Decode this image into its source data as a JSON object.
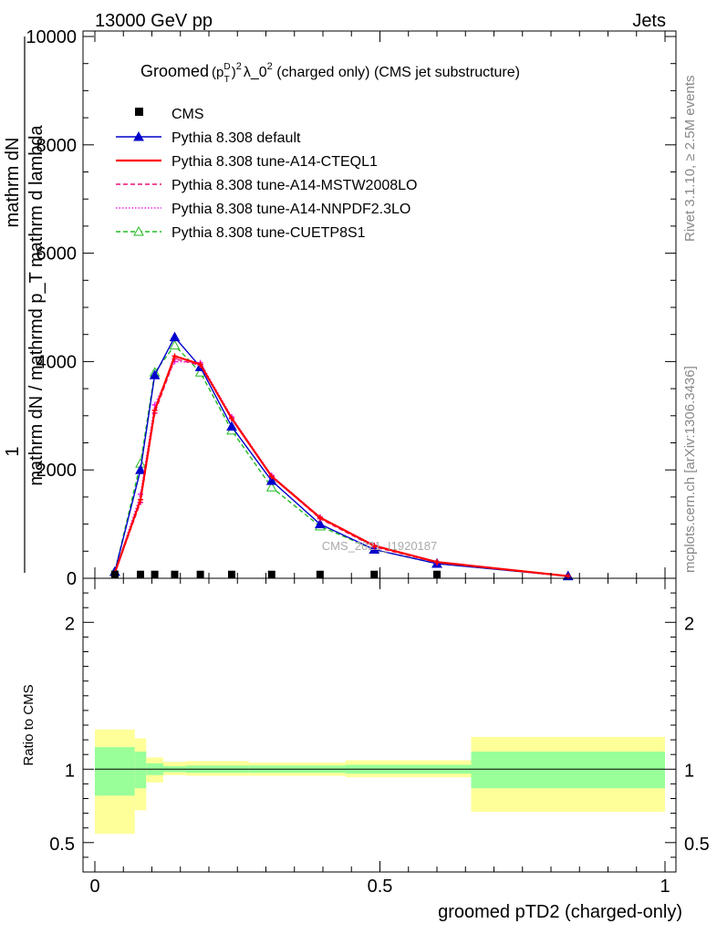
{
  "header": {
    "energy_label": "13000 GeV pp",
    "process_label": "Jets"
  },
  "side_labels": {
    "rivet": "Rivet 3.1.10, ≥ 2.5M events",
    "mcplots": "mcplots.cern.ch [arXiv:1306.3436]"
  },
  "watermark": "CMS_2021_I1920187",
  "colors": {
    "cms": "#000000",
    "default": "#0000cc",
    "cteql1": "#ff0000",
    "mstw": "#ee1177",
    "nnpdf": "#ee22ee",
    "cuetp8s1": "#22bb22",
    "band_inner": "#99ff99",
    "band_outer": "#ffff99"
  },
  "chart_data": [
    {
      "type": "line",
      "title": "Groomed (p_T^D)^2 λ_0^2  (charged only) (CMS jet substructure)",
      "title_parts": {
        "pre": "Groomed",
        "p": "(p",
        "sup_d": "D",
        "sub_t": "T",
        "close": ")",
        "sup_2": "2",
        "lambda": "λ_0",
        "sup_2b": "2",
        "post": "  (charged only) (CMS jet substructure)"
      },
      "ylabel_parts": {
        "one": "1",
        "num": "mathrm dN",
        "den": "mathrm dN / mathrmd p_T mathrm d lambda",
        "numer2": "mathrm d",
        "numer2b": "N",
        "den2": "mathrm d p",
        "den2sub": "T",
        "den2b": " mathrm d lambda"
      },
      "xlim": [
        0,
        1
      ],
      "ylim": [
        0,
        10000
      ],
      "yticks": [
        {
          "v": 0,
          "label": "0"
        },
        {
          "v": 2000,
          "label": "2000"
        },
        {
          "v": 4000,
          "label": "4000"
        },
        {
          "v": 6000,
          "label": "6000"
        },
        {
          "v": 8000,
          "label": "8000"
        },
        {
          "v": 10000,
          "label": "10000"
        }
      ],
      "cms_points": [
        {
          "x": 0.035,
          "y": 5
        },
        {
          "x": 0.08,
          "y": 5
        },
        {
          "x": 0.105,
          "y": 5
        },
        {
          "x": 0.14,
          "y": 5
        },
        {
          "x": 0.185,
          "y": 5
        },
        {
          "x": 0.24,
          "y": 5
        },
        {
          "x": 0.31,
          "y": 5
        },
        {
          "x": 0.395,
          "y": 5
        },
        {
          "x": 0.49,
          "y": 5
        },
        {
          "x": 0.6,
          "y": 5
        }
      ],
      "series": [
        {
          "key": "default",
          "name": "Pythia 8.308 default",
          "dash": "",
          "marker": "triangle-filled",
          "x": [
            0.035,
            0.08,
            0.105,
            0.14,
            0.185,
            0.24,
            0.31,
            0.395,
            0.49,
            0.6,
            0.83
          ],
          "y": [
            120,
            2000,
            3750,
            4450,
            3900,
            2800,
            1800,
            1000,
            530,
            270,
            40
          ]
        },
        {
          "key": "cteql1",
          "name": "Pythia 8.308 tune-A14-CTEQL1",
          "dash": "",
          "marker": "plus",
          "x": [
            0.035,
            0.08,
            0.105,
            0.14,
            0.185,
            0.24,
            0.31,
            0.395,
            0.49,
            0.6,
            0.83
          ],
          "y": [
            100,
            1450,
            3100,
            4100,
            3950,
            2950,
            1880,
            1120,
            600,
            300,
            40
          ]
        },
        {
          "key": "mstw",
          "name": "Pythia 8.308 tune-A14-MSTW2008LO",
          "dash": "5,3",
          "marker": "plus",
          "x": [
            0.035,
            0.08,
            0.105,
            0.14,
            0.185,
            0.24,
            0.31,
            0.395,
            0.49,
            0.6,
            0.83
          ],
          "y": [
            100,
            1400,
            3050,
            4050,
            3930,
            2950,
            1880,
            1100,
            580,
            290,
            40
          ]
        },
        {
          "key": "nnpdf",
          "name": "Pythia 8.308 tune-A14-NNPDF2.3LO",
          "dash": "1.5,2",
          "marker": "plus",
          "x": [
            0.035,
            0.08,
            0.105,
            0.14,
            0.185,
            0.24,
            0.31,
            0.395,
            0.49,
            0.6,
            0.83
          ],
          "y": [
            100,
            1550,
            3200,
            4000,
            3980,
            2980,
            1900,
            1130,
            610,
            300,
            40
          ]
        },
        {
          "key": "cuetp8s1",
          "name": "Pythia 8.308 tune-CUETP8S1",
          "dash": "5,3",
          "marker": "triangle-open",
          "x": [
            0.035,
            0.08,
            0.105,
            0.14,
            0.185,
            0.24,
            0.31,
            0.395,
            0.49,
            0.6,
            0.83
          ],
          "y": [
            120,
            2120,
            3800,
            4300,
            3800,
            2730,
            1680,
            960,
            530,
            270,
            40
          ]
        }
      ],
      "legend": {
        "placement": "top-left",
        "cms_label": "CMS"
      }
    },
    {
      "type": "area",
      "ylabel": "Ratio to CMS",
      "xlabel": "groomed pTD2 (charged-only)",
      "xlim": [
        0,
        1
      ],
      "ylim": [
        0.3,
        2.3
      ],
      "xticks": [
        {
          "v": 0,
          "label": "0"
        },
        {
          "v": 0.5,
          "label": "0.5"
        },
        {
          "v": 1,
          "label": "1"
        }
      ],
      "yticks": [
        {
          "v": 0.5,
          "label": "0.5"
        },
        {
          "v": 1,
          "label": "1"
        },
        {
          "v": 2,
          "label": "2"
        }
      ],
      "reference_line": 1,
      "bands": [
        {
          "x0": 0.0,
          "x1": 0.07,
          "inner": [
            0.82,
            1.15
          ],
          "outer": [
            0.56,
            1.27
          ]
        },
        {
          "x0": 0.07,
          "x1": 0.09,
          "inner": [
            0.87,
            1.12
          ],
          "outer": [
            0.72,
            1.21
          ]
        },
        {
          "x0": 0.09,
          "x1": 0.12,
          "inner": [
            0.96,
            1.04
          ],
          "outer": [
            0.91,
            1.08
          ]
        },
        {
          "x0": 0.12,
          "x1": 0.16,
          "inner": [
            0.98,
            1.02
          ],
          "outer": [
            0.96,
            1.05
          ]
        },
        {
          "x0": 0.16,
          "x1": 0.27,
          "inner": [
            0.975,
            1.025
          ],
          "outer": [
            0.955,
            1.055
          ]
        },
        {
          "x0": 0.27,
          "x1": 0.44,
          "inner": [
            0.975,
            1.025
          ],
          "outer": [
            0.955,
            1.045
          ]
        },
        {
          "x0": 0.44,
          "x1": 0.66,
          "inner": [
            0.97,
            1.03
          ],
          "outer": [
            0.945,
            1.06
          ]
        },
        {
          "x0": 0.66,
          "x1": 1.0,
          "inner": [
            0.87,
            1.12
          ],
          "outer": [
            0.71,
            1.22
          ]
        }
      ]
    }
  ]
}
